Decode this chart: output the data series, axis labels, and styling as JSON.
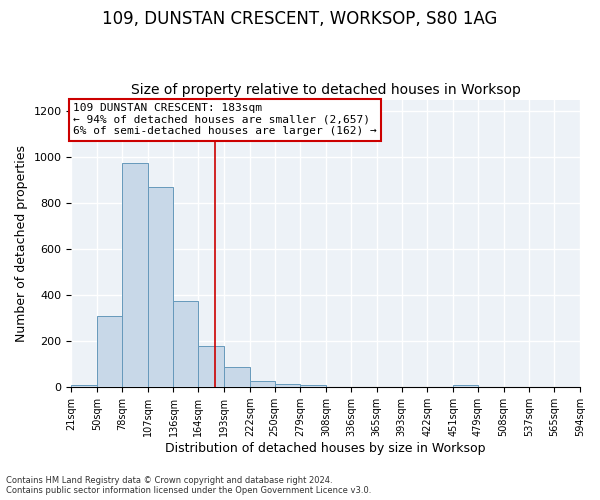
{
  "title1": "109, DUNSTAN CRESCENT, WORKSOP, S80 1AG",
  "title2": "Size of property relative to detached houses in Worksop",
  "xlabel": "Distribution of detached houses by size in Worksop",
  "ylabel": "Number of detached properties",
  "footer1": "Contains HM Land Registry data © Crown copyright and database right 2024.",
  "footer2": "Contains public sector information licensed under the Open Government Licence v3.0.",
  "bin_edges": [
    21,
    50,
    78,
    107,
    136,
    164,
    193,
    222,
    250,
    279,
    308,
    336,
    365,
    393,
    422,
    451,
    479,
    508,
    537,
    565,
    594
  ],
  "bin_counts": [
    10,
    310,
    975,
    870,
    375,
    180,
    90,
    25,
    15,
    10,
    0,
    0,
    0,
    0,
    0,
    10,
    0,
    0,
    0,
    0
  ],
  "bar_color": "#c8d8e8",
  "bar_edge_color": "#6699bb",
  "property_line_x": 183,
  "property_line_color": "#cc0000",
  "annotation_text": "109 DUNSTAN CRESCENT: 183sqm\n← 94% of detached houses are smaller (2,657)\n6% of semi-detached houses are larger (162) →",
  "annotation_box_color": "white",
  "annotation_box_edge_color": "#cc0000",
  "ylim": [
    0,
    1250
  ],
  "yticks": [
    0,
    200,
    400,
    600,
    800,
    1000,
    1200
  ],
  "bg_color": "#edf2f7",
  "grid_color": "white",
  "title1_fontsize": 12,
  "title2_fontsize": 10,
  "xlabel_fontsize": 9,
  "ylabel_fontsize": 9,
  "annot_fontsize": 8,
  "tick_fontsize": 7,
  "tick_labels": [
    "21sqm",
    "50sqm",
    "78sqm",
    "107sqm",
    "136sqm",
    "164sqm",
    "193sqm",
    "222sqm",
    "250sqm",
    "279sqm",
    "308sqm",
    "336sqm",
    "365sqm",
    "393sqm",
    "422sqm",
    "451sqm",
    "479sqm",
    "508sqm",
    "537sqm",
    "565sqm",
    "594sqm"
  ]
}
